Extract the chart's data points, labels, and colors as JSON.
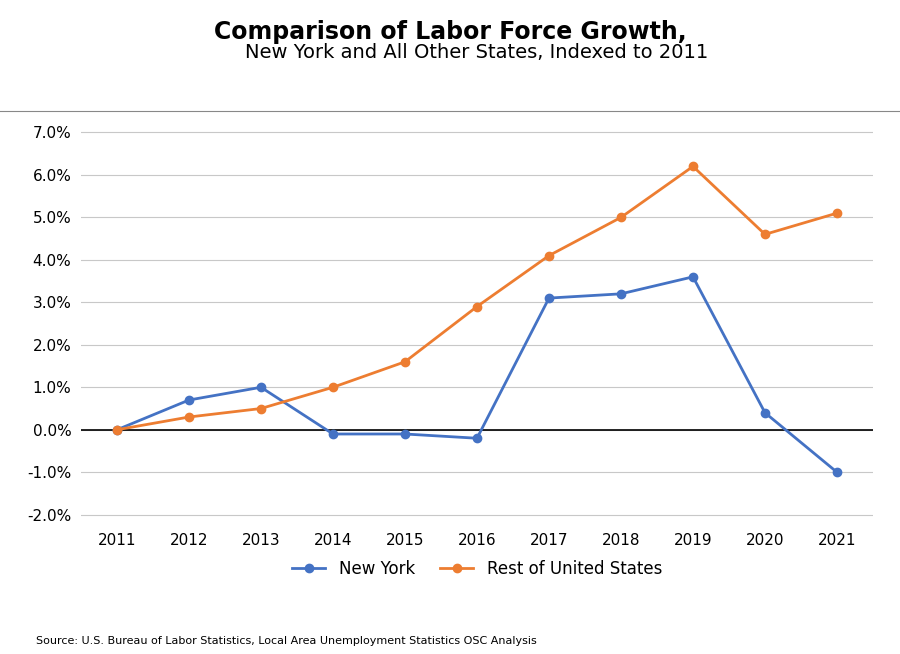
{
  "title_line1": "Comparison of Labor Force Growth,",
  "title_line2": "New York and All Other States, Indexed to 2011",
  "years": [
    2011,
    2012,
    2013,
    2014,
    2015,
    2016,
    2017,
    2018,
    2019,
    2020,
    2021
  ],
  "new_york": [
    0.0,
    0.007,
    0.01,
    -0.001,
    -0.001,
    -0.002,
    0.031,
    0.032,
    0.036,
    0.004,
    -0.01
  ],
  "rest_of_us": [
    0.0,
    0.003,
    0.005,
    0.01,
    0.016,
    0.029,
    0.041,
    0.05,
    0.062,
    0.046,
    0.051
  ],
  "ny_color": "#4472C4",
  "us_color": "#ED7D31",
  "ylim_min": -0.022,
  "ylim_max": 0.075,
  "yticks": [
    -0.02,
    -0.01,
    0.0,
    0.01,
    0.02,
    0.03,
    0.04,
    0.05,
    0.06,
    0.07
  ],
  "source_text": "Source: U.S. Bureau of Labor Statistics, Local Area Unemployment Statistics OSC Analysis",
  "legend_ny": "New York",
  "legend_us": "Rest of United States",
  "background_color": "#ffffff",
  "grid_color": "#c8c8c8",
  "marker_size": 6,
  "line_width": 2.0
}
